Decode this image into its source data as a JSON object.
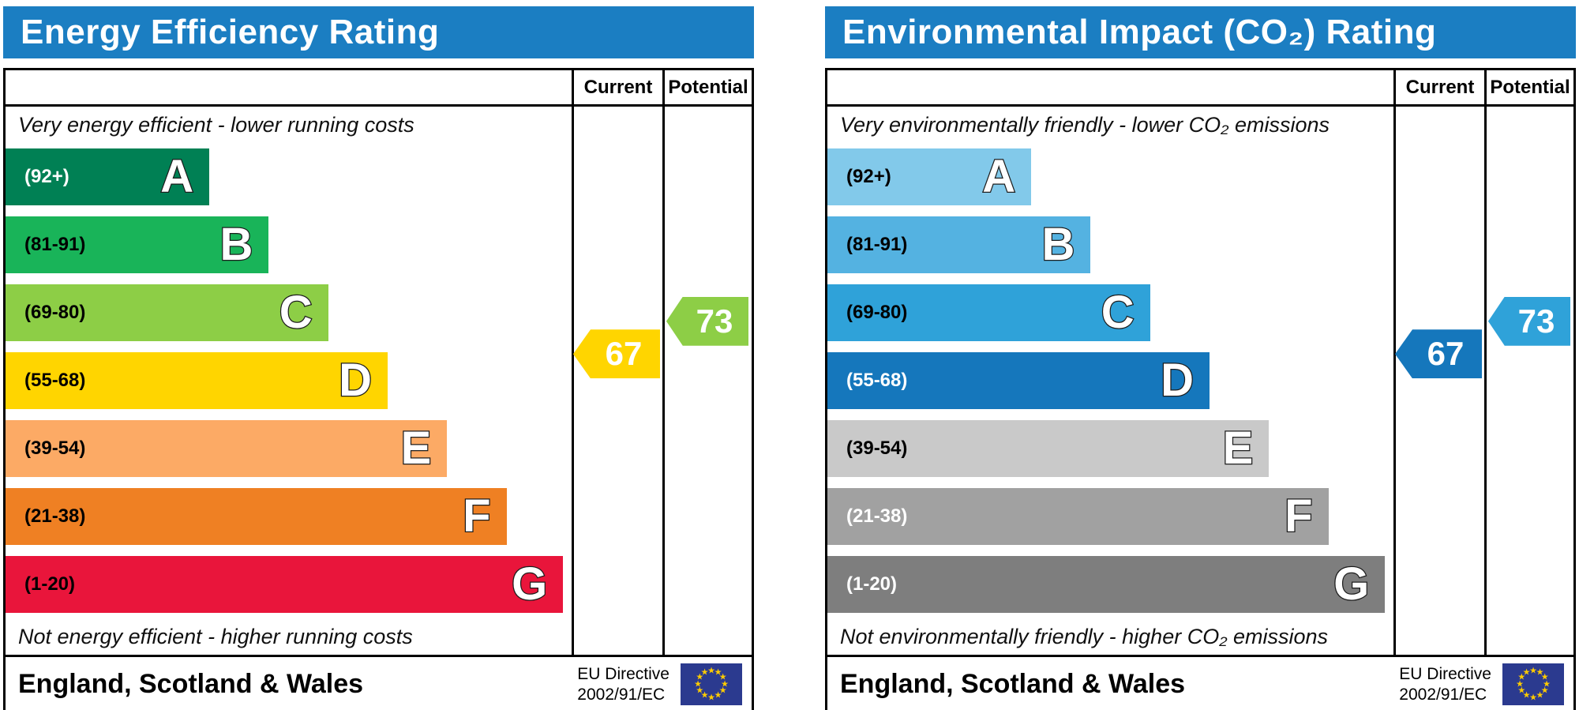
{
  "chart_data": [
    {
      "type": "bar",
      "title": "Energy Efficiency Rating",
      "header_color": "#1b7ec2",
      "column_headers": [
        "Current",
        "Potential"
      ],
      "top_note": "Very energy efficient - lower running costs",
      "bottom_note": "Not energy efficient - higher running costs",
      "categories": [
        "A",
        "B",
        "C",
        "D",
        "E",
        "F",
        "G"
      ],
      "ranges": [
        "(92+)",
        "(81-91)",
        "(69-80)",
        "(55-68)",
        "(39-54)",
        "(21-38)",
        "(1-20)"
      ],
      "band_min": [
        92,
        81,
        69,
        55,
        39,
        21,
        1
      ],
      "bar_width_pct": [
        36,
        46.5,
        57,
        67.5,
        78,
        88.5,
        98.5
      ],
      "bar_colors": [
        "#008054",
        "#19b459",
        "#8dce46",
        "#ffd500",
        "#fcaa65",
        "#ef8023",
        "#e9153b"
      ],
      "range_label_colors": [
        "#ffffff",
        "#000000",
        "#000000",
        "#000000",
        "#000000",
        "#000000",
        "#000000"
      ],
      "current": {
        "value": 67,
        "label": "67",
        "color": "#ffd500"
      },
      "potential": {
        "value": 73,
        "label": "73",
        "color": "#8dce46"
      },
      "footer_region": "England, Scotland & Wales",
      "footer_directive_line1": "EU Directive",
      "footer_directive_line2": "2002/91/EC"
    },
    {
      "type": "bar",
      "title": "Environmental Impact (CO₂) Rating",
      "header_color": "#1b7ec2",
      "column_headers": [
        "Current",
        "Potential"
      ],
      "top_note": "Very environmentally friendly - lower CO₂ emissions",
      "bottom_note": "Not environmentally friendly - higher CO₂ emissions",
      "categories": [
        "A",
        "B",
        "C",
        "D",
        "E",
        "F",
        "G"
      ],
      "ranges": [
        "(92+)",
        "(81-91)",
        "(69-80)",
        "(55-68)",
        "(39-54)",
        "(21-38)",
        "(1-20)"
      ],
      "band_min": [
        92,
        81,
        69,
        55,
        39,
        21,
        1
      ],
      "bar_width_pct": [
        36,
        46.5,
        57,
        67.5,
        78,
        88.5,
        98.5
      ],
      "bar_colors": [
        "#82c9ea",
        "#54b2e1",
        "#2fa2d9",
        "#1577bc",
        "#c9c9c9",
        "#a1a1a1",
        "#7e7e7e"
      ],
      "range_label_colors": [
        "#000000",
        "#000000",
        "#000000",
        "#ffffff",
        "#000000",
        "#ffffff",
        "#ffffff"
      ],
      "current": {
        "value": 67,
        "label": "67",
        "color": "#1577bc"
      },
      "potential": {
        "value": 73,
        "label": "73",
        "color": "#2fa2d9"
      },
      "footer_region": "England, Scotland & Wales",
      "footer_directive_line1": "EU Directive",
      "footer_directive_line2": "2002/91/EC"
    }
  ],
  "eu_flag": {
    "background": "#2b3a8f",
    "star_color": "#ffcc00"
  }
}
